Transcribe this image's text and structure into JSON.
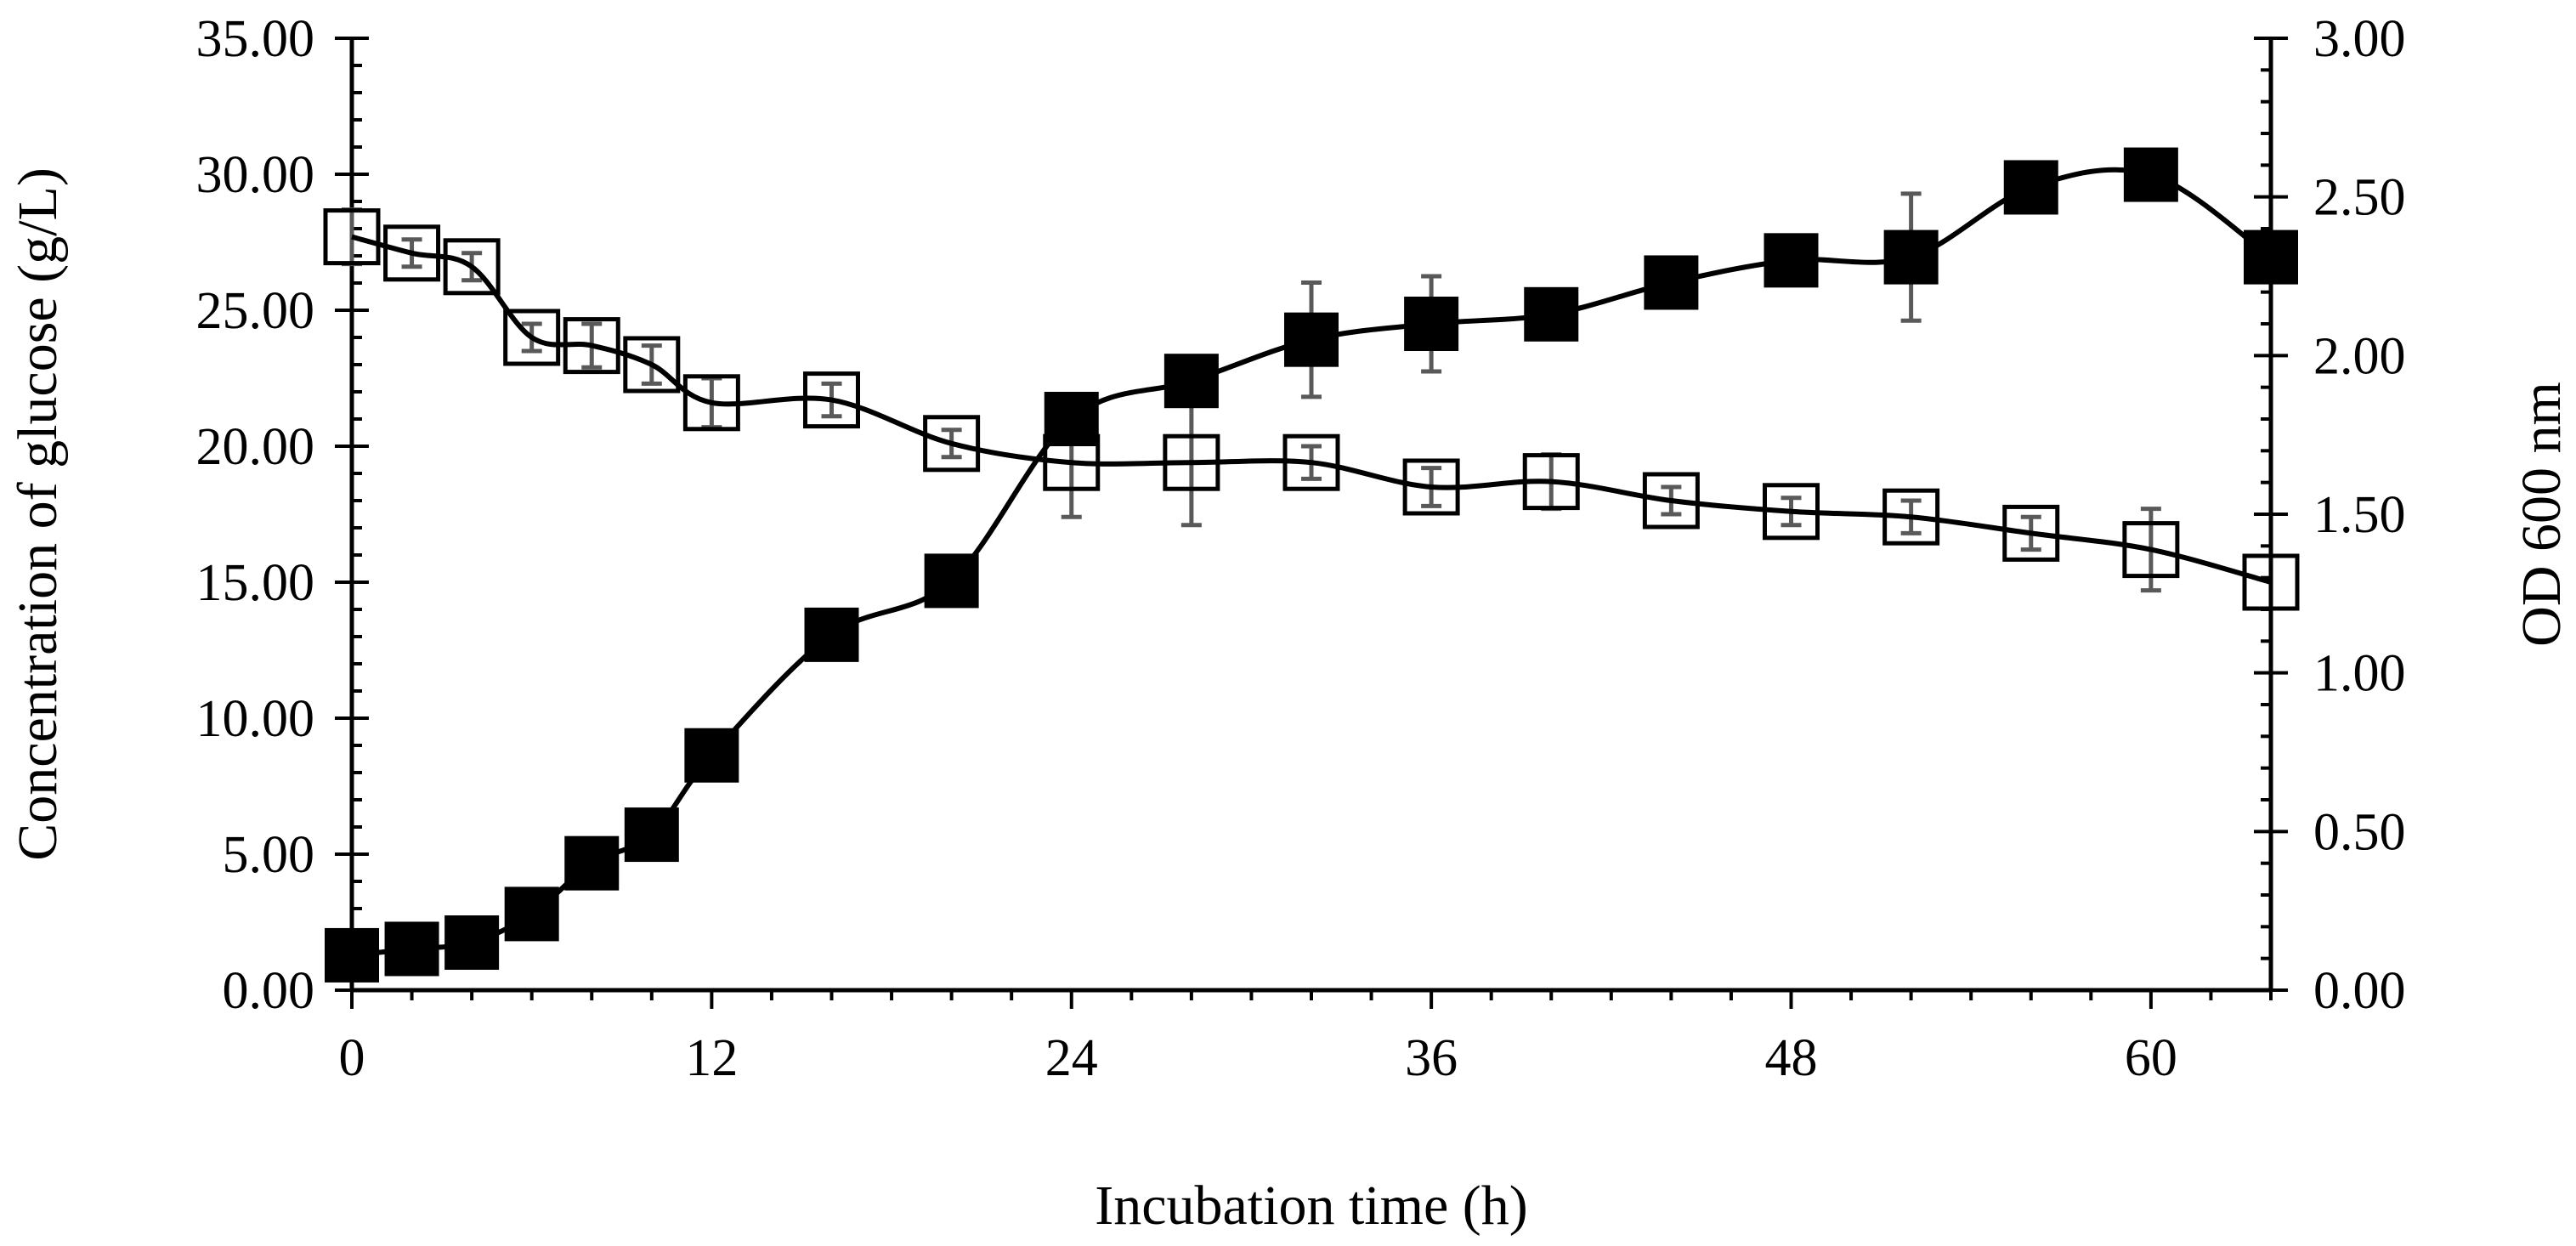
{
  "chart_data": {
    "type": "line",
    "title": "",
    "xlabel": "Incubation time (h)",
    "ylabel_left": "Concentration of glucose (g/L)",
    "ylabel_right": "OD 600 nm",
    "xlim": [
      0,
      64
    ],
    "ylim_left": [
      0,
      35
    ],
    "ylim_right": [
      0,
      3
    ],
    "x_ticks": [
      {
        "value": 0,
        "label": "0"
      },
      {
        "value": 12,
        "label": "12"
      },
      {
        "value": 24,
        "label": "24"
      },
      {
        "value": 36,
        "label": "36"
      },
      {
        "value": 48,
        "label": "48"
      },
      {
        "value": 60,
        "label": "60"
      }
    ],
    "y_left_ticks": [
      {
        "value": 0,
        "label": "0.00"
      },
      {
        "value": 5,
        "label": "5.00"
      },
      {
        "value": 10,
        "label": "10.00"
      },
      {
        "value": 15,
        "label": "15.00"
      },
      {
        "value": 20,
        "label": "20.00"
      },
      {
        "value": 25,
        "label": "25.00"
      },
      {
        "value": 30,
        "label": "30.00"
      },
      {
        "value": 35,
        "label": "35.00"
      }
    ],
    "y_right_ticks": [
      {
        "value": 0,
        "label": "0.00"
      },
      {
        "value": 0.5,
        "label": "0.50"
      },
      {
        "value": 1.0,
        "label": "1.00"
      },
      {
        "value": 1.5,
        "label": "1.50"
      },
      {
        "value": 2.0,
        "label": "2.00"
      },
      {
        "value": 2.5,
        "label": "2.50"
      },
      {
        "value": 3.0,
        "label": "3.00"
      }
    ],
    "series": [
      {
        "name": "Glucose concentration",
        "axis": "left",
        "marker": "open-square",
        "x": [
          0,
          2,
          4,
          6,
          8,
          10,
          12,
          16,
          20,
          24,
          28,
          32,
          36,
          40,
          44,
          48,
          52,
          56,
          60,
          64
        ],
        "values": [
          27.7,
          27.1,
          26.6,
          24.0,
          23.7,
          23.0,
          21.6,
          21.7,
          20.1,
          19.4,
          19.4,
          19.4,
          18.5,
          18.7,
          18.0,
          17.6,
          17.4,
          16.8,
          16.2,
          15.0
        ],
        "errors": [
          1.0,
          0.5,
          0.5,
          0.5,
          0.8,
          0.7,
          0.9,
          0.6,
          0.5,
          2.0,
          2.3,
          0.6,
          0.7,
          1.0,
          0.5,
          0.5,
          0.6,
          0.6,
          1.5,
          0.0
        ]
      },
      {
        "name": "OD 600 nm",
        "axis": "right",
        "marker": "filled-square",
        "x": [
          0,
          2,
          4,
          6,
          8,
          10,
          12,
          16,
          20,
          24,
          28,
          32,
          36,
          40,
          44,
          48,
          52,
          56,
          60,
          64
        ],
        "values": [
          0.11,
          0.13,
          0.15,
          0.24,
          0.4,
          0.49,
          0.74,
          1.12,
          1.29,
          1.8,
          1.92,
          2.05,
          2.1,
          2.13,
          2.23,
          2.3,
          2.31,
          2.53,
          2.57,
          2.31
        ],
        "errors": [
          0,
          0,
          0,
          0,
          0,
          0,
          0,
          0,
          0,
          0,
          0,
          0.18,
          0.15,
          0,
          0.05,
          0,
          0.2,
          0,
          0,
          0
        ]
      }
    ]
  }
}
